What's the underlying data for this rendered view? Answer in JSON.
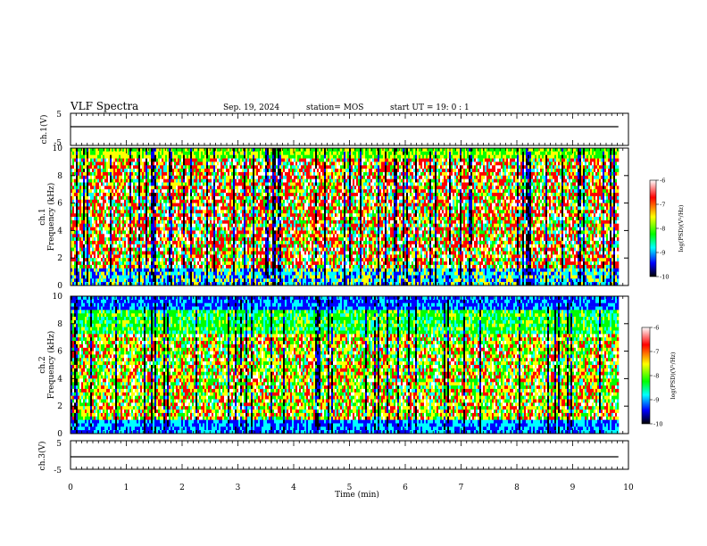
{
  "header": {
    "title": "VLF Spectra",
    "date": "Sep. 19, 2024",
    "station": "station= MOS",
    "start": "start  UT =   19: 0  : 1"
  },
  "colorbar": {
    "label": "log(PSD)(V²/Hz)",
    "ticks": [
      "-6",
      "-7",
      "-8",
      "-9",
      "-10"
    ],
    "colors": [
      "#ffffff",
      "#ff0000",
      "#ffff00",
      "#00ff00",
      "#00ffff",
      "#0000ff",
      "#000000"
    ]
  },
  "chart_data": [
    {
      "type": "line",
      "panel": "ch1-voltage",
      "ylabel": "ch.1(V)",
      "ylim": [
        -5,
        5
      ],
      "ytick_labels": [
        "5",
        "-5"
      ],
      "xlim": [
        0,
        10
      ],
      "series": [
        {
          "x": [
            0,
            9.82
          ],
          "y": [
            0,
            0
          ]
        }
      ]
    },
    {
      "type": "heatmap",
      "panel": "ch1-spectrogram",
      "ylabel": "ch.1\nFrequency (kHz)",
      "ylim": [
        0,
        10
      ],
      "ytick_labels": [
        "0",
        "2",
        "4",
        "6",
        "8",
        "10"
      ],
      "xlim": [
        0,
        10
      ],
      "data_end_min": 9.82,
      "zlim": [
        -10,
        -6
      ]
    },
    {
      "type": "heatmap",
      "panel": "ch2-spectrogram",
      "ylabel": "ch.2\nFrequency (kHz)",
      "ylim": [
        0,
        10
      ],
      "ytick_labels": [
        "0",
        "2",
        "4",
        "6",
        "8",
        "10"
      ],
      "xlim": [
        0,
        10
      ],
      "data_end_min": 9.82,
      "zlim": [
        -10,
        -6
      ]
    },
    {
      "type": "line",
      "panel": "ch3-voltage",
      "ylabel": "ch.3(V)",
      "ylim": [
        -5,
        5
      ],
      "ytick_labels": [
        "5",
        "-5"
      ],
      "xlim": [
        0,
        10
      ],
      "series": [
        {
          "x": [
            0,
            9.82
          ],
          "y": [
            0,
            0
          ]
        }
      ]
    }
  ],
  "xaxis": {
    "xlabel": "Time (min)",
    "tick_labels": [
      "0",
      "1",
      "2",
      "3",
      "4",
      "5",
      "6",
      "7",
      "8",
      "9",
      "10"
    ]
  }
}
